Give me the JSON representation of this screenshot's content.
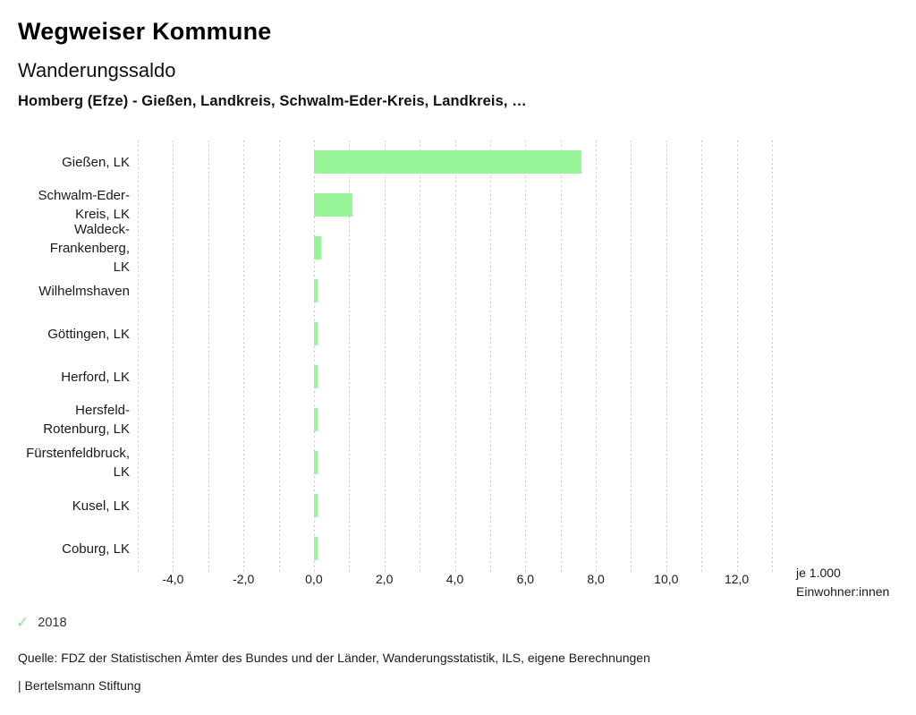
{
  "header": {
    "title": "Wegweiser Kommune",
    "subtitle": "Wanderungssaldo",
    "selection": "Homberg (Efze) - Gießen, Landkreis, Schwalm-Eder-Kreis, Landkreis, …"
  },
  "chart_data": {
    "type": "bar",
    "orientation": "horizontal",
    "title": "Wanderungssaldo",
    "categories": [
      "Gießen, LK",
      "Schwalm-Eder-Kreis, LK",
      "Waldeck-Frankenberg, LK",
      "Wilhelmshaven",
      "Göttingen, LK",
      "Herford, LK",
      "Hersfeld-Rotenburg, LK",
      "Fürstenfeldbruck, LK",
      "Kusel, LK",
      "Coburg, LK"
    ],
    "category_lines": [
      [
        "Gießen, LK"
      ],
      [
        "Schwalm-Eder-",
        "Kreis, LK"
      ],
      [
        "Waldeck-",
        "Frankenberg,",
        "LK"
      ],
      [
        "Wilhelmshaven"
      ],
      [
        "Göttingen, LK"
      ],
      [
        "Herford, LK"
      ],
      [
        "Hersfeld-",
        "Rotenburg, LK"
      ],
      [
        "Fürstenfeldbruck,",
        "LK"
      ],
      [
        "Kusel, LK"
      ],
      [
        "Coburg, LK"
      ]
    ],
    "series": [
      {
        "name": "2018",
        "values": [
          7.6,
          1.1,
          0.2,
          0.1,
          0.1,
          0.1,
          0.1,
          0.1,
          0.1,
          0.1
        ]
      }
    ],
    "xlabel": "je 1.000 Einwohner:innen",
    "xlim": [
      -5,
      13
    ],
    "grid_step": 1,
    "xtick_values": [
      -4,
      -2,
      0,
      2,
      4,
      6,
      8,
      10,
      12
    ],
    "xtick_labels": [
      "-4,0",
      "-2,0",
      "0,0",
      "2,0",
      "4,0",
      "6,0",
      "8,0",
      "10,0",
      "12,0"
    ],
    "grid": "vertical-dashed",
    "legend_position": "bottom-left"
  },
  "axis_unit": {
    "line1": "je 1.000",
    "line2": "Einwohner:innen"
  },
  "legend": {
    "check_glyph": "✓",
    "year": "2018"
  },
  "footer": {
    "source": "Quelle: FDZ der Statistischen Ämter des Bundes und der Länder, Wanderungsstatistik, ILS, eigene Berechnungen",
    "brand": "| Bertelsmann Stiftung"
  },
  "colors": {
    "bar": "#98F698",
    "grid": "#CBCBCB",
    "text": "#1A1A1A",
    "check": "#86E886"
  }
}
